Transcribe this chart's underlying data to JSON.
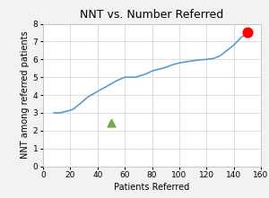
{
  "title": "NNT vs. Number Referred",
  "xlabel": "Patients Referred",
  "ylabel": "NNT among referred patients",
  "xlim": [
    0,
    160
  ],
  "ylim": [
    0,
    8
  ],
  "xticks": [
    0,
    20,
    40,
    60,
    80,
    100,
    120,
    140,
    160
  ],
  "yticks": [
    0,
    1,
    2,
    3,
    4,
    5,
    6,
    7,
    8
  ],
  "line_x": [
    8,
    10,
    12,
    15,
    18,
    22,
    27,
    33,
    40,
    47,
    54,
    60,
    65,
    68,
    72,
    76,
    80,
    85,
    90,
    95,
    100,
    105,
    110,
    115,
    120,
    125,
    130,
    135,
    140,
    145,
    150
  ],
  "line_y": [
    3.0,
    3.0,
    3.0,
    3.05,
    3.1,
    3.2,
    3.5,
    3.9,
    4.2,
    4.5,
    4.8,
    5.0,
    5.0,
    5.0,
    5.1,
    5.2,
    5.35,
    5.45,
    5.55,
    5.7,
    5.8,
    5.87,
    5.92,
    5.97,
    6.0,
    6.05,
    6.2,
    6.5,
    6.8,
    7.2,
    7.5
  ],
  "line_color": "#5b9bd5",
  "line_width": 1.2,
  "marker_red_x": 150,
  "marker_red_y": 7.5,
  "marker_red_color": "#ff0000",
  "marker_red_size": 60,
  "marker_green_x": 50,
  "marker_green_y": 2.45,
  "marker_green_color": "#70ad47",
  "marker_green_size": 40,
  "bg_color": "#f2f2f2",
  "plot_bg_color": "#ffffff",
  "grid_color": "#d9d9d9",
  "title_fontsize": 9,
  "label_fontsize": 7,
  "tick_fontsize": 6.5
}
